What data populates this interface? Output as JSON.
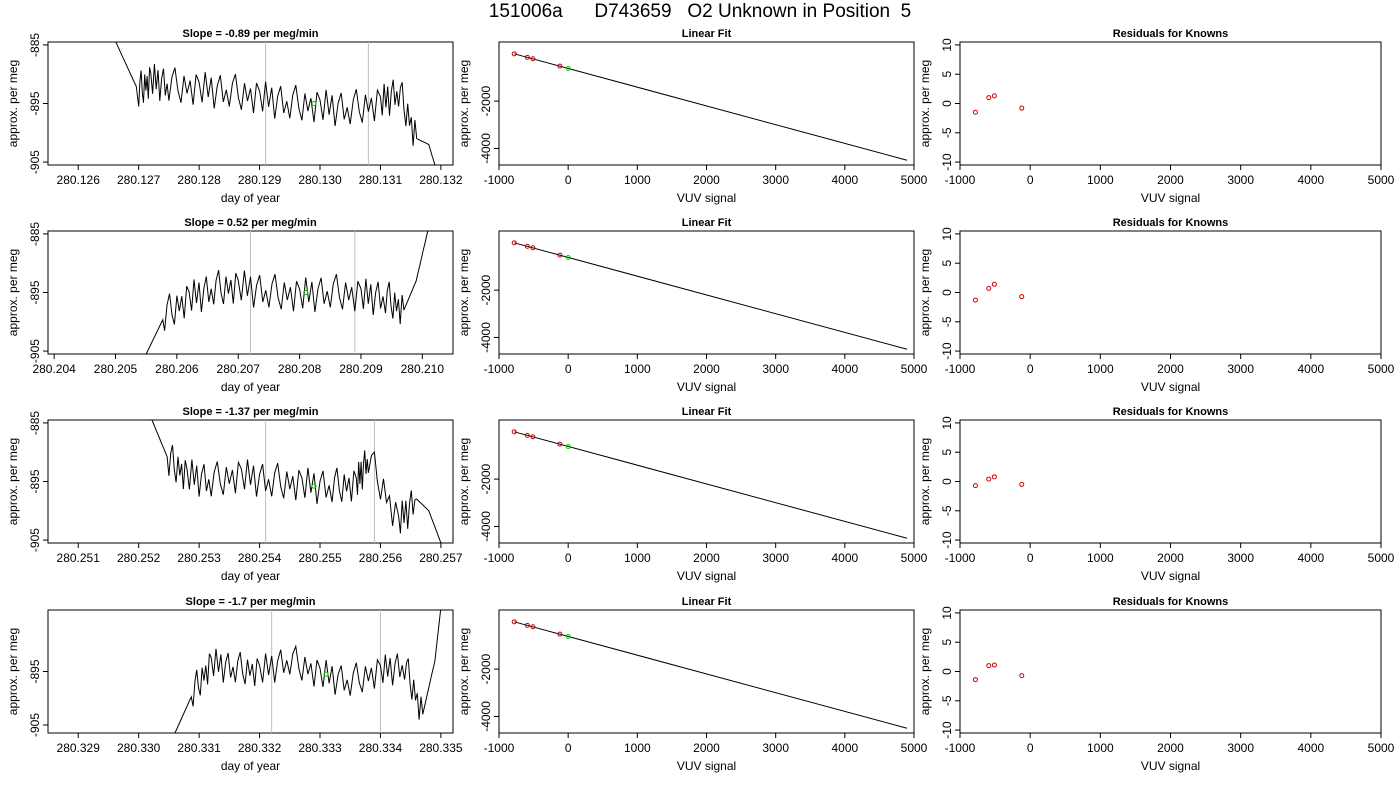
{
  "title": "151006a      D743659   O2 Unknown in Position  5",
  "chart_data": [
    {
      "type": "line",
      "row": 1,
      "panel": "timeseries",
      "title": "Slope =  -0.89  per meg/min",
      "xlabel": "day of year",
      "ylabel": "approx. per meg",
      "xlim": [
        280.1255,
        280.1322
      ],
      "ylim": [
        -905.5,
        -884.5
      ],
      "xticks": [
        "280.126",
        "280.127",
        "280.128",
        "280.129",
        "280.130",
        "280.131",
        "280.132"
      ],
      "yticks": [
        "-885",
        "-895",
        "-905"
      ],
      "vlines": [
        280.1291,
        280.1308
      ],
      "green_marker": {
        "x": 280.1299,
        "y": -895.0
      },
      "series": [
        {
          "x": [
            280.1266,
            280.127,
            280.1272,
            280.1275,
            280.128,
            280.1285,
            280.129,
            280.1295,
            280.13,
            280.1305,
            280.131,
            280.1313,
            280.1316,
            280.1318,
            280.1319
          ],
          "y": [
            -884.0,
            -893.0,
            -891.0,
            -892.0,
            -892.5,
            -893.0,
            -894.0,
            -895.0,
            -895.5,
            -896.0,
            -895.0,
            -893.0,
            -901.0,
            -902.0,
            -905.5
          ]
        }
      ]
    },
    {
      "type": "line",
      "row": 1,
      "panel": "linear-fit",
      "title": "Linear Fit",
      "xlabel": "VUV signal",
      "ylabel": "approx. per meg",
      "xlim": [
        -1000,
        5000
      ],
      "ylim": [
        -4700,
        500
      ],
      "xticks": [
        "-1000",
        "0",
        "1000",
        "2000",
        "3000",
        "4000",
        "5000"
      ],
      "yticks": [
        "-2000",
        "-4000"
      ],
      "fit_line": {
        "x": [
          -780,
          4900
        ],
        "y": [
          0,
          -4500
        ]
      },
      "known_points": {
        "x": [
          -780,
          -590,
          -510,
          -120
        ],
        "y": [
          0,
          -150,
          -210,
          -520
        ]
      },
      "unknown_point": {
        "x": 0,
        "y": -620
      }
    },
    {
      "type": "scatter",
      "row": 1,
      "panel": "residuals",
      "title": "Residuals for Knowns",
      "xlabel": "VUV signal",
      "ylabel": "approx. per meg",
      "xlim": [
        -1000,
        5000
      ],
      "ylim": [
        -10.5,
        10.5
      ],
      "xticks": [
        "-1000",
        "0",
        "1000",
        "2000",
        "3000",
        "4000",
        "5000"
      ],
      "yticks": [
        "10",
        "5",
        "0",
        "-5",
        "-10"
      ],
      "x": [
        -780,
        -590,
        -510,
        -120
      ],
      "y": [
        -1.5,
        1.0,
        1.3,
        -0.8
      ]
    },
    {
      "type": "line",
      "row": 2,
      "panel": "timeseries",
      "title": "Slope =  0.52  per meg/min",
      "xlabel": "day of year",
      "ylabel": "approx. per meg",
      "xlim": [
        280.2039,
        280.2105
      ],
      "ylim": [
        -905.5,
        -884.5
      ],
      "xticks": [
        "280.204",
        "280.205",
        "280.206",
        "280.207",
        "280.208",
        "280.209",
        "280.210"
      ],
      "yticks": [
        "-885",
        "-895",
        "-905"
      ],
      "vlines": [
        280.2072,
        280.2089
      ],
      "green_marker": {
        "x": 280.2081,
        "y": -895.0
      },
      "series": [
        {
          "x": [
            280.2055,
            280.2058,
            280.2062,
            280.2066,
            280.207,
            280.2075,
            280.208,
            280.2085,
            280.209,
            280.2094,
            280.2097,
            280.2099,
            280.2101
          ],
          "y": [
            -905.5,
            -899.0,
            -896.0,
            -894.5,
            -894.0,
            -895.0,
            -895.5,
            -895.0,
            -895.5,
            -896.0,
            -898.0,
            -893.0,
            -884.0
          ]
        }
      ]
    },
    {
      "type": "line",
      "row": 2,
      "panel": "linear-fit",
      "title": "Linear Fit",
      "xlabel": "VUV signal",
      "ylabel": "approx. per meg",
      "xlim": [
        -1000,
        5000
      ],
      "ylim": [
        -4700,
        500
      ],
      "xticks": [
        "-1000",
        "0",
        "1000",
        "2000",
        "3000",
        "4000",
        "5000"
      ],
      "yticks": [
        "-2000",
        "-4000"
      ],
      "fit_line": {
        "x": [
          -780,
          4900
        ],
        "y": [
          0,
          -4500
        ]
      },
      "known_points": {
        "x": [
          -780,
          -590,
          -510,
          -120
        ],
        "y": [
          0,
          -150,
          -210,
          -520
        ]
      },
      "unknown_point": {
        "x": 0,
        "y": -620
      }
    },
    {
      "type": "scatter",
      "row": 2,
      "panel": "residuals",
      "title": "Residuals for Knowns",
      "xlabel": "VUV signal",
      "ylabel": "approx. per meg",
      "xlim": [
        -1000,
        5000
      ],
      "ylim": [
        -10.5,
        10.5
      ],
      "xticks": [
        "-1000",
        "0",
        "1000",
        "2000",
        "3000",
        "4000",
        "5000"
      ],
      "yticks": [
        "10",
        "5",
        "0",
        "-5",
        "-10"
      ],
      "x": [
        -780,
        -590,
        -510,
        -120
      ],
      "y": [
        -1.3,
        0.7,
        1.4,
        -0.7
      ]
    },
    {
      "type": "line",
      "row": 3,
      "panel": "timeseries",
      "title": "Slope =  -1.37  per meg/min",
      "xlabel": "day of year",
      "ylabel": "approx. per meg",
      "xlim": [
        280.2505,
        280.2572
      ],
      "ylim": [
        -905.5,
        -884.5
      ],
      "xticks": [
        "280.251",
        "280.252",
        "280.253",
        "280.254",
        "280.255",
        "280.256",
        "280.257"
      ],
      "yticks": [
        "-885",
        "-895",
        "-905"
      ],
      "vlines": [
        280.2541,
        280.2559
      ],
      "green_marker": {
        "x": 280.2549,
        "y": -895.8
      },
      "series": [
        {
          "x": [
            280.2522,
            280.2525,
            280.2528,
            280.2532,
            280.2537,
            280.2542,
            280.2547,
            280.2552,
            280.2556,
            280.2558,
            280.2563,
            280.2566,
            280.2568,
            280.257
          ],
          "y": [
            -884.0,
            -891.5,
            -894.0,
            -895.0,
            -894.0,
            -895.0,
            -895.5,
            -896.0,
            -895.5,
            -891.0,
            -902.0,
            -898.0,
            -900.0,
            -905.5
          ]
        }
      ]
    },
    {
      "type": "line",
      "row": 3,
      "panel": "linear-fit",
      "title": "Linear Fit",
      "xlabel": "VUV signal",
      "ylabel": "approx. per meg",
      "xlim": [
        -1000,
        5000
      ],
      "ylim": [
        -4700,
        500
      ],
      "xticks": [
        "-1000",
        "0",
        "1000",
        "2000",
        "3000",
        "4000",
        "5000"
      ],
      "yticks": [
        "-2000",
        "-4000"
      ],
      "fit_line": {
        "x": [
          -780,
          4900
        ],
        "y": [
          0,
          -4500
        ]
      },
      "known_points": {
        "x": [
          -780,
          -590,
          -510,
          -120
        ],
        "y": [
          0,
          -150,
          -210,
          -520
        ]
      },
      "unknown_point": {
        "x": 0,
        "y": -620
      }
    },
    {
      "type": "scatter",
      "row": 3,
      "panel": "residuals",
      "title": "Residuals for Knowns",
      "xlabel": "VUV signal",
      "ylabel": "approx. per meg",
      "xlim": [
        -1000,
        5000
      ],
      "ylim": [
        -10.5,
        10.5
      ],
      "xticks": [
        "-1000",
        "0",
        "1000",
        "2000",
        "3000",
        "4000",
        "5000"
      ],
      "yticks": [
        "10",
        "5",
        "0",
        "-5",
        "-10"
      ],
      "x": [
        -780,
        -590,
        -510,
        -120
      ],
      "y": [
        -0.7,
        0.4,
        0.8,
        -0.5
      ]
    },
    {
      "type": "line",
      "row": 4,
      "panel": "timeseries",
      "title": "Slope =  -1.7  per meg/min",
      "xlabel": "day of year",
      "ylabel": "approx. per meg",
      "xlim": [
        280.3285,
        280.3352
      ],
      "ylim": [
        -906.5,
        -883.5
      ],
      "xticks": [
        "280.329",
        "280.330",
        "280.331",
        "280.332",
        "280.333",
        "280.334",
        "280.335"
      ],
      "yticks": [
        "-895",
        "-905"
      ],
      "vlines": [
        280.3322,
        280.334
      ],
      "green_marker": {
        "x": 280.3331,
        "y": -895.5
      },
      "series": [
        {
          "x": [
            280.3306,
            280.3309,
            280.3312,
            280.3316,
            280.332,
            280.3325,
            280.333,
            280.3335,
            280.334,
            280.3344,
            280.3347,
            280.3349,
            280.335
          ],
          "y": [
            -906.5,
            -899.0,
            -893.5,
            -894.5,
            -895.0,
            -893.0,
            -895.5,
            -897.0,
            -895.0,
            -894.0,
            -903.0,
            -893.0,
            -883.0
          ]
        }
      ]
    },
    {
      "type": "line",
      "row": 4,
      "panel": "linear-fit",
      "title": "Linear Fit",
      "xlabel": "VUV signal",
      "ylabel": "approx. per meg",
      "xlim": [
        -1000,
        5000
      ],
      "ylim": [
        -4700,
        500
      ],
      "xticks": [
        "-1000",
        "0",
        "1000",
        "2000",
        "3000",
        "4000",
        "5000"
      ],
      "yticks": [
        "-2000",
        "-4000"
      ],
      "fit_line": {
        "x": [
          -780,
          4900
        ],
        "y": [
          0,
          -4500
        ]
      },
      "known_points": {
        "x": [
          -780,
          -590,
          -510,
          -120
        ],
        "y": [
          0,
          -150,
          -210,
          -520
        ]
      },
      "unknown_point": {
        "x": 0,
        "y": -620
      }
    },
    {
      "type": "scatter",
      "row": 4,
      "panel": "residuals",
      "title": "Residuals for Knowns",
      "xlabel": "VUV signal",
      "ylabel": "approx. per meg",
      "xlim": [
        -1000,
        5000
      ],
      "ylim": [
        -10.5,
        10.5
      ],
      "xticks": [
        "-1000",
        "0",
        "1000",
        "2000",
        "3000",
        "4000",
        "5000"
      ],
      "yticks": [
        "10",
        "5",
        "0",
        "-5",
        "-10"
      ],
      "x": [
        -780,
        -590,
        -510,
        -120
      ],
      "y": [
        -1.4,
        1.0,
        1.1,
        -0.7
      ]
    }
  ]
}
